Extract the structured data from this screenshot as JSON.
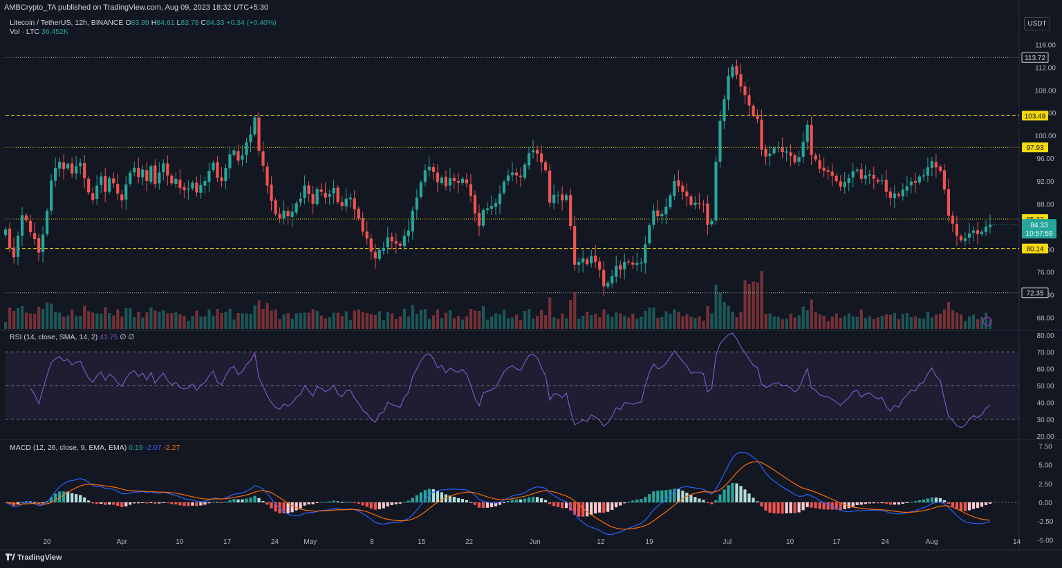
{
  "credit": "AMBCrypto_TA published on TradingView.com, Aug 09, 2023 18:32 UTC+5:30",
  "legend": {
    "symbol": "Litecoin / TetherUS, 12h, BINANCE",
    "o_label": "O",
    "o": "83.99",
    "h_label": "H",
    "h": "84.61",
    "l_label": "L",
    "l": "83.78",
    "c_label": "C",
    "c": "84.33",
    "change": "+0.34 (+0.40%)",
    "vol_label": "Vol · LTC",
    "vol": "36.452K",
    "rsi_label": "RSI (14, close, SMA, 14, 2)",
    "rsi_value": "41.75",
    "rsi_extra": "∅ ∅",
    "macd_label": "MACD (12, 26, close, 9, EMA, EMA)",
    "macd_hist": "0.19",
    "macd_line": "-2.07",
    "macd_signal": "-2.27"
  },
  "currency_button": "USDT",
  "branding": "TradingView",
  "colors": {
    "bg": "#131722",
    "up": "#26a69a",
    "down": "#ef5350",
    "level_yellow": "#f5d90a",
    "rsi": "#7e57c2",
    "macd": "#2962ff",
    "signal": "#ff6d00"
  },
  "chart_data": [
    {
      "type": "candlestick",
      "title": "Litecoin / TetherUS, 12h, BINANCE",
      "ylim": [
        66,
        118
      ],
      "y_ticks": [
        "116.00",
        "112.00",
        "108.00",
        "104.00",
        "100.00",
        "96.00",
        "92.00",
        "88.00",
        "84.00",
        "80.00",
        "76.00",
        "72.00",
        "68.00"
      ],
      "x_ticks": [
        "20",
        "Apr",
        "10",
        "17",
        "24",
        "May",
        "8",
        "15",
        "22",
        "Jun",
        "12",
        "19",
        "Jul",
        "10",
        "17",
        "24",
        "Aug",
        "14"
      ],
      "x_tick_pos": [
        0.041,
        0.115,
        0.172,
        0.219,
        0.266,
        0.301,
        0.362,
        0.411,
        0.458,
        0.523,
        0.588,
        0.636,
        0.713,
        0.775,
        0.821,
        0.869,
        0.915,
        0.999
      ],
      "horizontal_levels": [
        {
          "value": 113.72,
          "label": "113.72",
          "style": "dotted",
          "color": "#b2b5be"
        },
        {
          "value": 103.49,
          "label": "103.49",
          "style": "dashed",
          "color": "#f5d90a"
        },
        {
          "value": 97.93,
          "label": "97.93",
          "style": "dotted",
          "color": "#f5d90a"
        },
        {
          "value": 85.32,
          "label": "85.32",
          "style": "dotted",
          "color": "#f5d90a"
        },
        {
          "value": 80.14,
          "label": "80.14",
          "style": "dashed",
          "color": "#f5d90a"
        },
        {
          "value": 72.35,
          "label": "72.35",
          "style": "dotted",
          "color": "#b2b5be"
        }
      ],
      "last_price": {
        "value": 84.33,
        "label": "84.33",
        "countdown": "10:57:59"
      },
      "closes": [
        83.5,
        80.2,
        78.6,
        82.4,
        86.0,
        85.1,
        83.0,
        81.8,
        79.4,
        82.6,
        86.8,
        92.1,
        94.3,
        95.4,
        94.1,
        95.0,
        93.3,
        94.6,
        95.2,
        92.5,
        90.0,
        88.7,
        91.2,
        92.8,
        90.1,
        92.5,
        91.6,
        89.8,
        88.6,
        91.4,
        93.5,
        94.3,
        92.7,
        94.0,
        92.0,
        94.6,
        91.5,
        93.5,
        95.1,
        93.0,
        91.6,
        92.4,
        90.8,
        90.4,
        90.7,
        91.7,
        90.0,
        91.3,
        92.0,
        93.8,
        95.2,
        92.6,
        92.0,
        94.3,
        96.7,
        97.4,
        95.6,
        96.5,
        98.8,
        100.2,
        103.2,
        97.3,
        94.7,
        91.2,
        88.5,
        86.2,
        85.4,
        86.8,
        85.8,
        86.6,
        88.1,
        88.9,
        91.2,
        89.7,
        88.0,
        90.6,
        90.1,
        89.1,
        89.7,
        90.8,
        88.3,
        87.6,
        88.9,
        89.1,
        87.0,
        85.4,
        83.1,
        81.9,
        79.6,
        78.4,
        79.9,
        80.2,
        82.1,
        81.4,
        81.0,
        80.6,
        82.4,
        83.3,
        86.8,
        89.1,
        91.8,
        93.9,
        94.5,
        93.6,
        91.8,
        92.6,
        91.1,
        92.5,
        92.0,
        91.7,
        92.4,
        91.6,
        89.4,
        86.3,
        84.1,
        86.9,
        87.2,
        87.6,
        88.1,
        89.8,
        91.9,
        93.0,
        93.5,
        93.0,
        92.7,
        94.9,
        96.9,
        97.4,
        96.8,
        95.3,
        93.9,
        88.2,
        89.6,
        89.5,
        88.6,
        89.5,
        84.1,
        77.3,
        77.8,
        78.4,
        77.4,
        78.8,
        77.8,
        76.4,
        73.5,
        74.1,
        75.3,
        77.1,
        76.4,
        77.8,
        77.7,
        77.3,
        77.6,
        77.7,
        80.9,
        84.2,
        86.8,
        85.8,
        86.2,
        87.5,
        89.5,
        92.0,
        91.1,
        90.1,
        89.3,
        87.8,
        88.2,
        88.1,
        87.9,
        84.3,
        85.0,
        95.4,
        102.6,
        106.4,
        110.5,
        112.1,
        110.7,
        108.6,
        107.1,
        105.3,
        103.6,
        102.9,
        97.5,
        96.3,
        96.8,
        97.8,
        97.9,
        97.1,
        97.2,
        96.4,
        95.3,
        96.2,
        98.9,
        101.9,
        96.6,
        95.8,
        94.2,
        93.8,
        93.6,
        92.9,
        92.0,
        91.0,
        91.8,
        92.5,
        93.7,
        94.0,
        92.4,
        93.0,
        93.2,
        92.4,
        91.9,
        92.1,
        90.1,
        89.0,
        89.8,
        89.4,
        90.5,
        91.1,
        91.9,
        91.7,
        92.8,
        93.0,
        94.4,
        95.5,
        94.4,
        93.8,
        90.5,
        85.9,
        84.5,
        82.4,
        81.6,
        81.9,
        82.8,
        83.3,
        82.7,
        83.1,
        83.99,
        84.33
      ],
      "close": 84.33,
      "open": 83.99,
      "high": 84.61,
      "low": 83.78
    },
    {
      "type": "bar",
      "title": "Vol · LTC",
      "last_value": "36.452K",
      "note": "volume histogram, bars colored by candle direction; spike near 1 Jul"
    },
    {
      "type": "line",
      "title": "RSI (14, close, SMA, 14, 2)",
      "ylim": [
        18,
        82
      ],
      "y_ticks": [
        "80.00",
        "70.00",
        "60.00",
        "50.00",
        "40.00",
        "30.00",
        "20.00"
      ],
      "bands": {
        "upper": 70,
        "middle": 50,
        "lower": 30
      },
      "last_value": 41.75
    },
    {
      "type": "line",
      "title": "MACD (12, 26, close, 9, EMA, EMA)",
      "ylim": [
        -5.8,
        8.2
      ],
      "y_ticks": [
        "7.50",
        "5.00",
        "2.50",
        "0.00",
        "-2.50",
        "-5.00"
      ],
      "series": [
        {
          "name": "MACD",
          "last": -2.07
        },
        {
          "name": "Signal",
          "last": -2.27
        },
        {
          "name": "Histogram",
          "last": 0.19
        }
      ]
    }
  ]
}
